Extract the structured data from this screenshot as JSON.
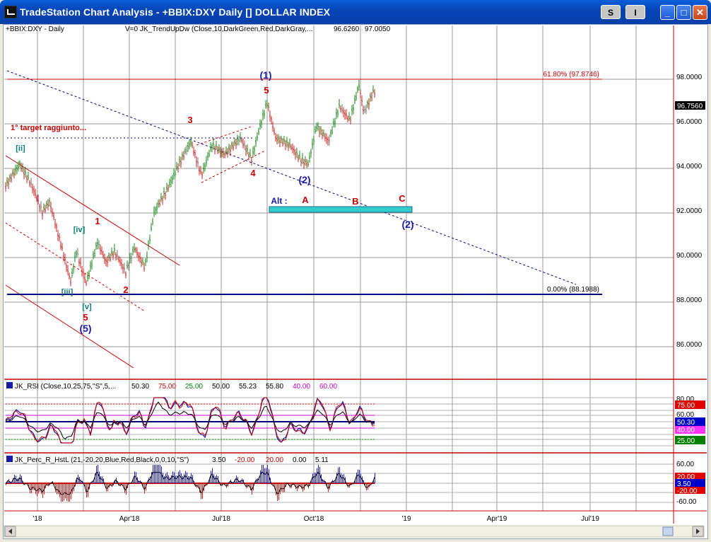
{
  "window": {
    "title": "TradeStation Chart Analysis - +BBIX:DXY Daily [] DOLLAR INDEX",
    "btn_s": "S",
    "btn_i": "I",
    "btn_min": "_",
    "btn_max": "□",
    "btn_close": "✕"
  },
  "price_panel": {
    "symbol": "+BBIX:DXY - Daily",
    "indicator": "V=0  JK_TrendUpDw (Close,10,DarkGreen,Red,DarkGray,...",
    "ind_val1": "96.6260",
    "ind_val2": "97.0050",
    "last_price": "96.7560",
    "y_ticks": [
      "98.0000",
      "96.0000",
      "94.0000",
      "92.0000",
      "90.0000",
      "88.0000",
      "86.0000"
    ],
    "fib_top": "61.80% (97.8746)",
    "fib_bottom": "0.00% (88.1988)",
    "target_note": "1° target raggiunto...",
    "alt_label": "Alt :",
    "labels": {
      "w1": "(1)",
      "w5_top": "5",
      "w3": "3",
      "w4": "4",
      "w2_main": "(2)",
      "A": "A",
      "B": "B",
      "C": "C",
      "w2_alt": "(2)",
      "ii": "[ii]",
      "iv": "[iv]",
      "iii": "[iii]",
      "v": "[v]",
      "w1_small": "1",
      "w2_small": "2",
      "w5_low": "5",
      "w5_wave": "(5)"
    }
  },
  "rsi_panel": {
    "name": "JK_RSI (Close,10,25,75,\"S\",5,...",
    "values": [
      "50.30",
      "75.00",
      "25.00",
      "50.00",
      "55.23",
      "55.80",
      "40.00",
      "60.00"
    ],
    "value_colors": [
      "#000000",
      "#cc0000",
      "#008000",
      "#000000",
      "#000000",
      "#000000",
      "#cc00cc",
      "#cc00cc"
    ],
    "axis": {
      "t80": "80.00",
      "t75": "75.00",
      "t60": "60.00",
      "t50": "50.30",
      "t40": "40.00",
      "t25": "25.00"
    }
  },
  "perc_panel": {
    "name": "JK_Perc_R_HstL (21,-20,20,Blue,Red,Black,0,0,10,\"S\")",
    "values": [
      "3.50",
      "-20.00",
      "20.00",
      "0.00",
      "5.11"
    ],
    "value_colors": [
      "#000000",
      "#cc0000",
      "#cc0000",
      "#000000",
      "#000000"
    ],
    "axis": {
      "t60": "60.00",
      "t20": "20.00",
      "t350": "3.50",
      "tm20": "-20.00",
      "tm60": "-60.00"
    }
  },
  "x_axis": [
    "'18",
    "Apr'18",
    "Jul'18",
    "Oct'18",
    "'19",
    "Apr'19",
    "Jul'19"
  ]
}
